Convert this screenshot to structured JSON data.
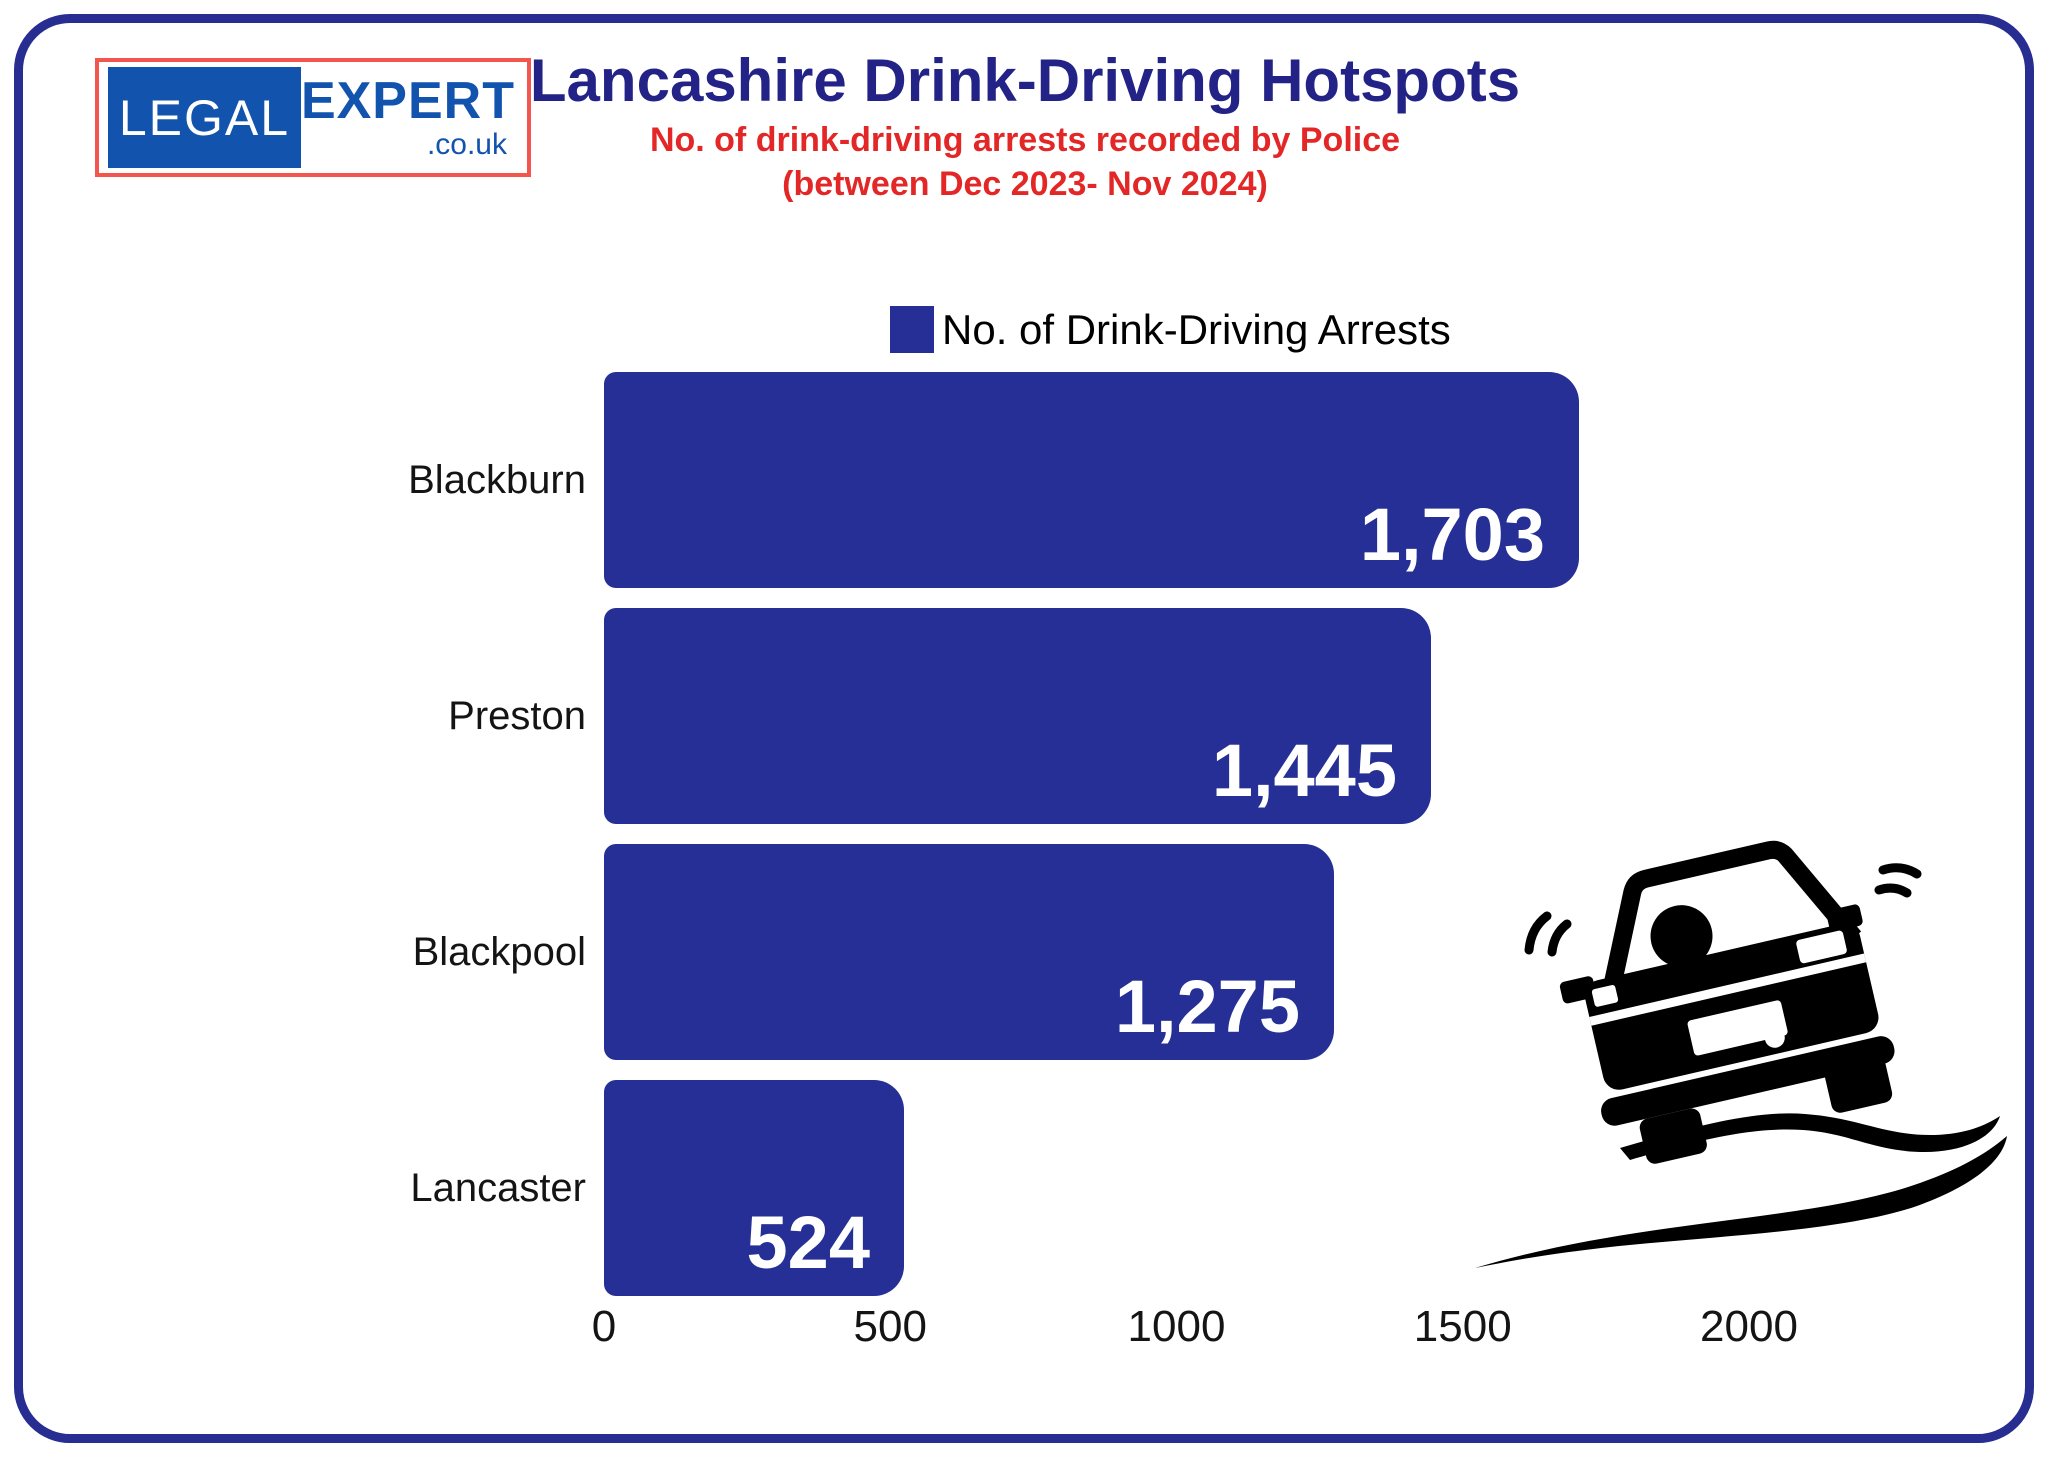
{
  "logo": {
    "legal": "LEGAL",
    "expert": "EXPERT",
    "suffix": ".co.uk"
  },
  "header": {
    "title": "Lancashire Drink-Driving Hotspots",
    "subtitle_line1": "No. of drink-driving arrests recorded by Police",
    "subtitle_line2": "(between Dec 2023- Nov 2024)"
  },
  "legend": {
    "label": "No. of Drink-Driving Arrests"
  },
  "chart_data": {
    "type": "bar",
    "orientation": "horizontal",
    "title": "Lancashire Drink-Driving Hotspots",
    "subtitle": "No. of drink-driving arrests recorded by Police (between Dec 2023- Nov 2024)",
    "legend": [
      "No. of Drink-Driving Arrests"
    ],
    "legend_position": "top",
    "categories": [
      "Blackburn",
      "Preston",
      "Blackpool",
      "Lancaster"
    ],
    "values": [
      1703,
      1445,
      1275,
      524
    ],
    "value_labels": [
      "1,703",
      "1,445",
      "1,275",
      "524"
    ],
    "x_ticks": [
      0,
      500,
      1000,
      1500,
      2000
    ],
    "xlim": [
      0,
      2000
    ],
    "grid": false,
    "bar_color": "#252f95",
    "value_label_color": "#ffffff"
  },
  "colors": {
    "bar_blue": "#252f95",
    "title_navy": "#232287",
    "subtitle_red": "#e32726",
    "logo_blue": "#1253ae",
    "logo_border_red": "#f2564d",
    "frame_navy": "#272d91",
    "car_black": "#000000"
  },
  "icons": {
    "car": "skidding-car-icon",
    "legend_swatch": "legend-swatch"
  }
}
